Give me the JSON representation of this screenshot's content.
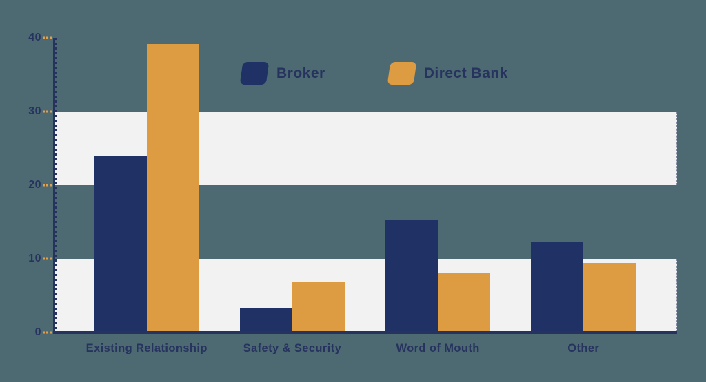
{
  "chart_data": {
    "type": "bar",
    "title": "",
    "xlabel": "",
    "ylabel": "",
    "categories": [
      "Existing Relationship",
      "Safety & Security",
      "Word of Mouth",
      "Other"
    ],
    "series": [
      {
        "name": "Broker",
        "color": "#203166",
        "values": [
          23.9,
          3.4,
          15.3,
          12.3
        ]
      },
      {
        "name": "Direct Bank",
        "color": "#dd9b42",
        "values": [
          39.2,
          6.9,
          8.1,
          9.4
        ]
      }
    ],
    "ylim": [
      0,
      40
    ],
    "yticks": [
      0,
      10,
      20,
      30,
      40
    ],
    "stripe_bands": [
      [
        20,
        30
      ],
      [
        0,
        10
      ]
    ],
    "grid": "horizontal-bands",
    "legend_position": "top-center"
  },
  "colors": {
    "background": "#4d6a73",
    "stripe": "#f2f2f2",
    "axis": "#27335f",
    "tick_dash": "#e2a04f",
    "label_text": "#27335f"
  }
}
